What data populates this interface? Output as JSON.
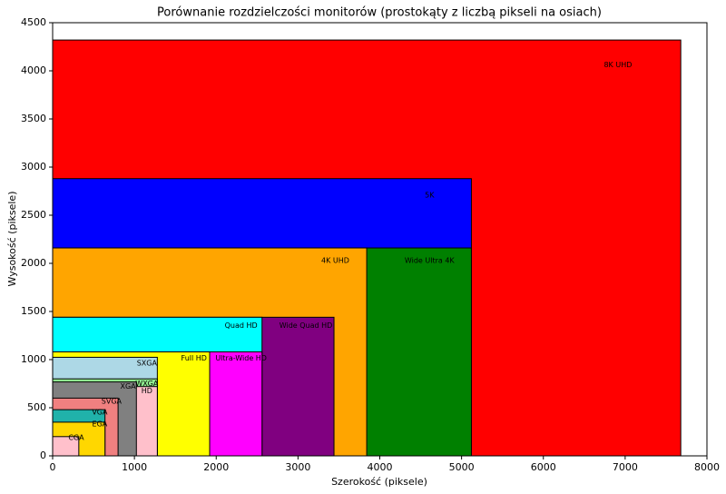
{
  "chart_data": {
    "type": "rect",
    "title": "Porównanie rozdzielczości monitorów (prostokąty z liczbą pikseli na osiach)",
    "xlabel": "Szerokość (piksele)",
    "ylabel": "Wysokość (piksele)",
    "categories": [
      "8K UHD",
      "5K",
      "Wide Ultra 4K",
      "4K UHD",
      "Wide Quad HD",
      "Quad HD",
      "Ultra-Wide HD",
      "Full HD",
      "SXGA",
      "WXGA",
      "HD",
      "XGA",
      "SVGA",
      "VGA",
      "EGA",
      "CGA"
    ],
    "x": [
      7680,
      5120,
      5120,
      3840,
      3440,
      2560,
      2560,
      1920,
      1280,
      1280,
      1280,
      1024,
      800,
      640,
      640,
      320
    ],
    "values": [
      4320,
      2880,
      2160,
      2160,
      1440,
      1440,
      1080,
      1080,
      1024,
      800,
      720,
      768,
      600,
      480,
      350,
      200
    ],
    "colors": [
      "#ff0000",
      "#0000ff",
      "#008000",
      "#ffa500",
      "#800080",
      "#00ffff",
      "#ff00ff",
      "#ffff00",
      "#add8e6",
      "#90ee90",
      "#ffc0cb",
      "#808080",
      "#f08080",
      "#20b2aa",
      "#ffd700",
      "#ffc0cb"
    ],
    "xlim": [
      0,
      8000
    ],
    "ylim": [
      0,
      4500
    ],
    "xticks": [
      0,
      1000,
      2000,
      3000,
      4000,
      5000,
      6000,
      7000,
      8000
    ],
    "yticks": [
      0,
      500,
      1000,
      1500,
      2000,
      2500,
      3000,
      3500,
      4000,
      4500
    ]
  }
}
